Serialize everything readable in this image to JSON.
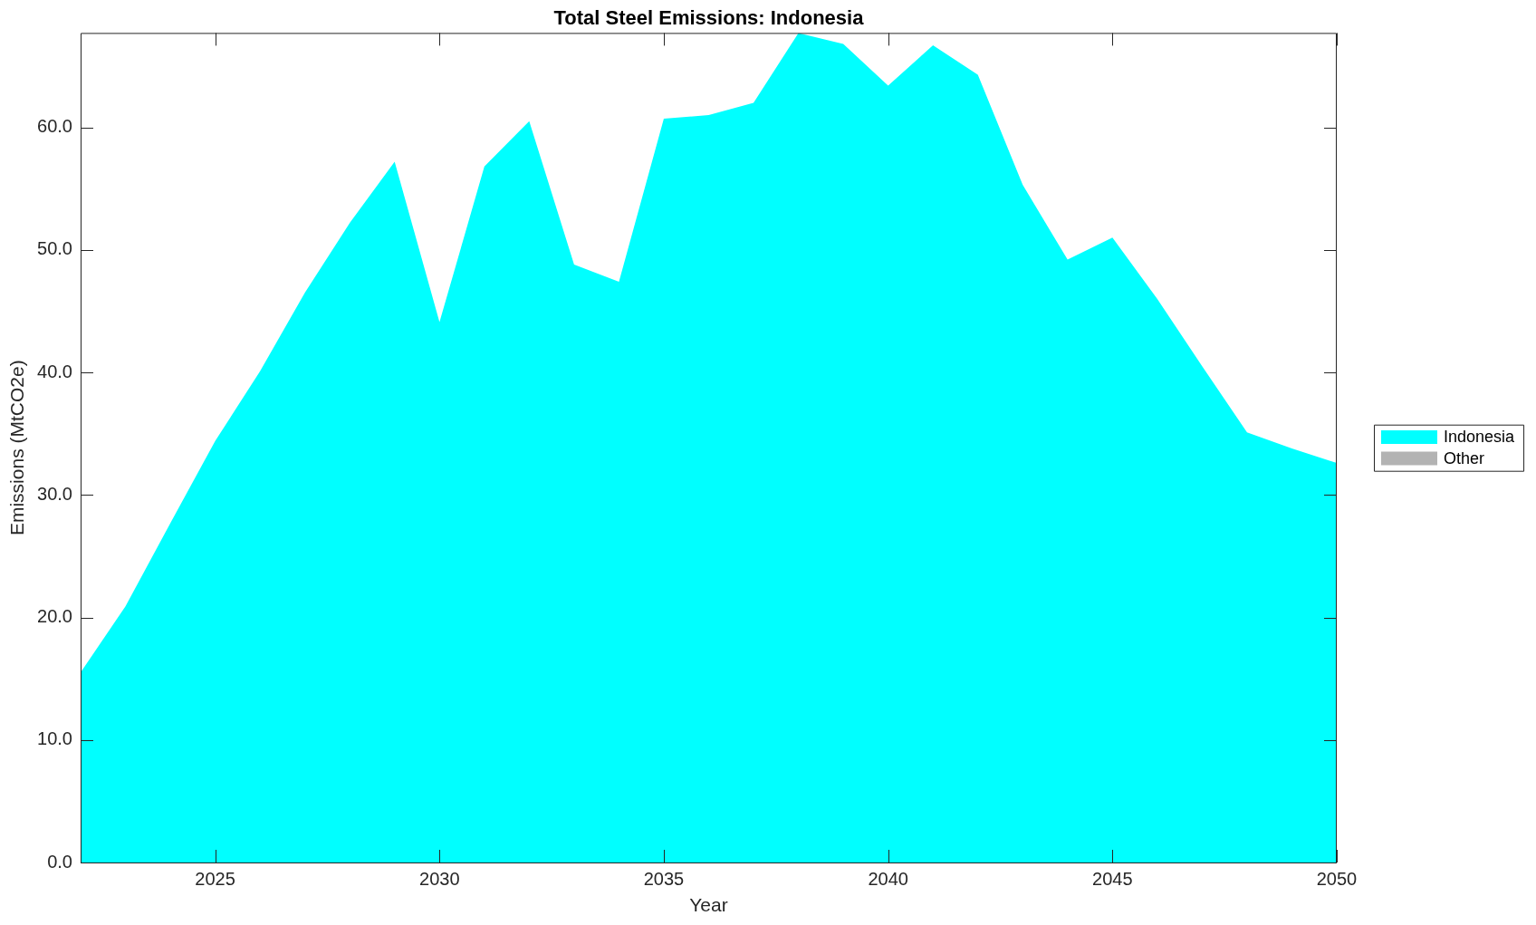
{
  "chart_data": {
    "type": "area",
    "title": "Total Steel Emissions: Indonesia",
    "xlabel": "Year",
    "ylabel": "Emissions (MtCO2e)",
    "x": [
      2022,
      2023,
      2024,
      2025,
      2026,
      2027,
      2028,
      2029,
      2030,
      2031,
      2032,
      2033,
      2034,
      2035,
      2036,
      2037,
      2038,
      2039,
      2040,
      2041,
      2042,
      2043,
      2044,
      2045,
      2046,
      2047,
      2048,
      2049,
      2050
    ],
    "series": [
      {
        "name": "Indonesia",
        "color": "#00ffff",
        "values": [
          15.5,
          20.9,
          27.7,
          34.4,
          40.1,
          46.5,
          52.2,
          57.2,
          44.1,
          56.8,
          60.5,
          48.8,
          47.4,
          60.7,
          61.0,
          62.0,
          67.7,
          66.8,
          63.4,
          66.7,
          64.3,
          55.3,
          49.2,
          51.0,
          46.0,
          40.5,
          35.1,
          33.8,
          32.6
        ]
      },
      {
        "name": "Other",
        "color": "#b3b3b3",
        "values": [
          null,
          null,
          null,
          null,
          null,
          null,
          null,
          null,
          null,
          null,
          null,
          null,
          null,
          null,
          null,
          null,
          null,
          null,
          null,
          null,
          null,
          null,
          null,
          null,
          null,
          null,
          null,
          null,
          null
        ]
      }
    ],
    "xlim": [
      2022,
      2050
    ],
    "xticks": [
      2025,
      2030,
      2035,
      2040,
      2045,
      2050
    ],
    "ylim": [
      0,
      67.7
    ],
    "yticks": [
      {
        "value": 0,
        "label": "0.0"
      },
      {
        "value": 10,
        "label": "10.0"
      },
      {
        "value": 20,
        "label": "20.0"
      },
      {
        "value": 30,
        "label": "30.0"
      },
      {
        "value": 40,
        "label": "40.0"
      },
      {
        "value": 50,
        "label": "50.0"
      },
      {
        "value": 60,
        "label": "60.0"
      }
    ],
    "legend": "right"
  }
}
